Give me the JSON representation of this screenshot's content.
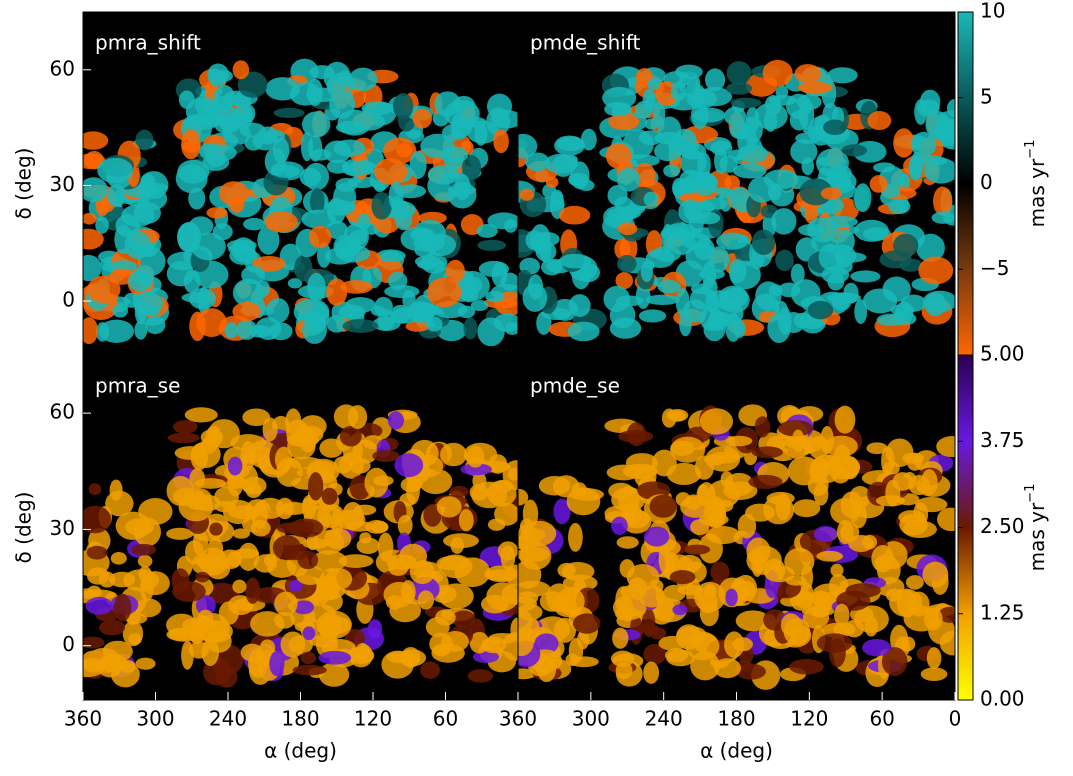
{
  "chart_data": [
    {
      "type": "image",
      "title": "pmra_shift",
      "ylabel": "δ (deg)",
      "xlim": [
        360,
        0
      ],
      "ylim": [
        -14,
        75
      ],
      "yticks": [
        0,
        30,
        60
      ]
    },
    {
      "type": "image",
      "title": "pmde_shift",
      "xlim": [
        360,
        0
      ],
      "ylim": [
        -14,
        75
      ]
    },
    {
      "type": "image",
      "title": "pmra_se",
      "ylabel": "δ (deg)",
      "xlabel": "α (deg)",
      "xlim": [
        360,
        0
      ],
      "ylim": [
        -14,
        75
      ],
      "yticks": [
        0,
        30,
        60
      ],
      "xticks": [
        360,
        300,
        240,
        180,
        120,
        60
      ]
    },
    {
      "type": "image",
      "title": "pmde_se",
      "xlabel": "α (deg)",
      "xlim": [
        360,
        0
      ],
      "ylim": [
        -14,
        75
      ],
      "xticks": [
        360,
        300,
        240,
        180,
        120,
        60,
        0
      ]
    },
    {
      "type": "colorbar",
      "label": "mas yr",
      "label_exponent": "−1",
      "clim": [
        -10,
        10
      ],
      "ticks": [
        {
          "value": -5,
          "label": "−5"
        },
        0,
        5,
        10
      ],
      "colors": [
        "#ff6600",
        "#7a3a10",
        "#000000",
        "#0a5a5a",
        "#1ab8b8"
      ]
    },
    {
      "type": "colorbar",
      "label": "mas yr",
      "label_exponent": "−1",
      "clim": [
        0,
        5
      ],
      "ticks": [
        {
          "value": 0,
          "label": "0.00"
        },
        {
          "value": 1.25,
          "label": "1.25"
        },
        {
          "value": 2.5,
          "label": "2.50"
        },
        {
          "value": 3.75,
          "label": "3.75"
        },
        {
          "value": 5,
          "label": "5.00"
        }
      ],
      "colors": [
        "#ffff00",
        "#f0a000",
        "#6a1a00",
        "#6a18e0",
        "#2a0050"
      ]
    }
  ]
}
